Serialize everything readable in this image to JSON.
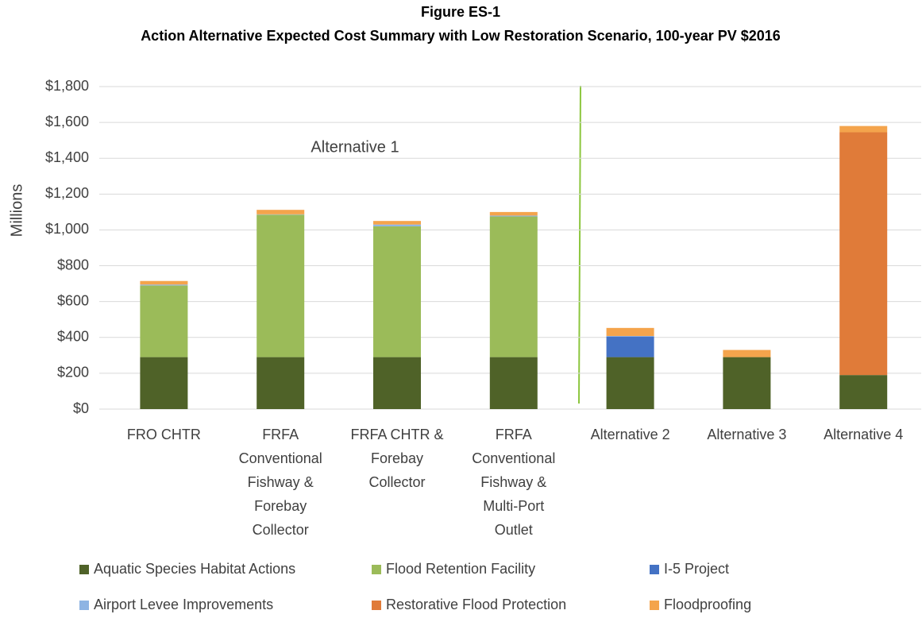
{
  "chart_data": {
    "type": "stacked_bar",
    "title": "Figure ES-1",
    "subtitle": "Action Alternative Expected Cost Summary with Low Restoration Scenario, 100-year PV $2016",
    "y_label": "Millions",
    "annotation": "Alternative  1",
    "categories": [
      "FRO CHTR",
      "FRFA Conventional Fishway & Forebay Collector",
      "FRFA CHTR & Forebay Collector",
      "FRFA Conventional Fishway & Multi-Port Outlet",
      "Alternative 2",
      "Alternative 3",
      "Alternative 4"
    ],
    "series": [
      {
        "name": "Aquatic Species Habitat Actions",
        "color": "#4f6228",
        "values": [
          290,
          290,
          290,
          290,
          290,
          290,
          190
        ]
      },
      {
        "name": "Flood Retention Facility",
        "color": "#9bbb59",
        "values": [
          400,
          795,
          730,
          785,
          0,
          0,
          0
        ]
      },
      {
        "name": "I-5 Project",
        "color": "#4472c4",
        "values": [
          0,
          0,
          0,
          0,
          115,
          0,
          0
        ]
      },
      {
        "name": "Airport Levee Improvements",
        "color": "#8eb4e3",
        "values": [
          5,
          2,
          10,
          5,
          3,
          0,
          0
        ]
      },
      {
        "name": "Restorative Flood Protection",
        "color": "#e07b39",
        "values": [
          0,
          0,
          0,
          0,
          0,
          0,
          1355
        ]
      },
      {
        "name": "Floodproofing",
        "color": "#f4a44c",
        "values": [
          20,
          25,
          20,
          20,
          45,
          40,
          35
        ]
      }
    ],
    "ylim": [
      0,
      1800
    ],
    "yticks": [
      {
        "value": 0,
        "label": "$0"
      },
      {
        "value": 200,
        "label": "$200"
      },
      {
        "value": 400,
        "label": "$400"
      },
      {
        "value": 600,
        "label": "$600"
      },
      {
        "value": 800,
        "label": "$800"
      },
      {
        "value": 1000,
        "label": "$1,000"
      },
      {
        "value": 1200,
        "label": "$1,200"
      },
      {
        "value": 1400,
        "label": "$1,400"
      },
      {
        "value": 1600,
        "label": "$1,600"
      },
      {
        "value": 1800,
        "label": "$1,800"
      }
    ],
    "grid": true,
    "legend": "bottom"
  }
}
